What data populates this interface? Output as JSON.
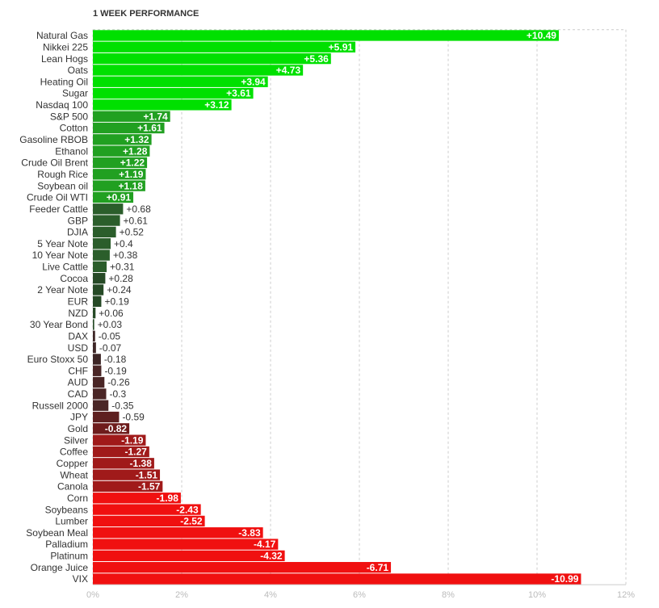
{
  "chart_data": {
    "type": "hbar",
    "title": "1 WEEK PERFORMANCE",
    "categories": [
      "Natural Gas",
      "Nikkei 225",
      "Lean Hogs",
      "Oats",
      "Heating Oil",
      "Sugar",
      "Nasdaq 100",
      "S&P 500",
      "Cotton",
      "Gasoline RBOB",
      "Ethanol",
      "Crude Oil Brent",
      "Rough Rice",
      "Soybean oil",
      "Crude Oil WTI",
      "Feeder Cattle",
      "GBP",
      "DJIA",
      "5 Year Note",
      "10 Year Note",
      "Live Cattle",
      "Cocoa",
      "2 Year Note",
      "EUR",
      "NZD",
      "30 Year Bond",
      "DAX",
      "USD",
      "Euro Stoxx 50",
      "CHF",
      "AUD",
      "CAD",
      "Russell 2000",
      "JPY",
      "Gold",
      "Silver",
      "Coffee",
      "Copper",
      "Wheat",
      "Canola",
      "Corn",
      "Soybeans",
      "Lumber",
      "Soybean Meal",
      "Palladium",
      "Platinum",
      "Orange Juice",
      "VIX"
    ],
    "values": [
      10.49,
      5.91,
      5.36,
      4.73,
      3.94,
      3.61,
      3.12,
      1.74,
      1.61,
      1.32,
      1.28,
      1.22,
      1.19,
      1.18,
      0.91,
      0.68,
      0.61,
      0.52,
      0.4,
      0.38,
      0.31,
      0.28,
      0.24,
      0.19,
      0.06,
      0.03,
      -0.05,
      -0.07,
      -0.18,
      -0.19,
      -0.26,
      -0.3,
      -0.35,
      -0.59,
      -0.82,
      -1.19,
      -1.27,
      -1.38,
      -1.51,
      -1.57,
      -1.98,
      -2.43,
      -2.52,
      -3.83,
      -4.17,
      -4.32,
      -6.71,
      -10.99
    ],
    "value_labels": [
      "+10.49",
      "+5.91",
      "+5.36",
      "+4.73",
      "+3.94",
      "+3.61",
      "+3.12",
      "+1.74",
      "+1.61",
      "+1.32",
      "+1.28",
      "+1.22",
      "+1.19",
      "+1.18",
      "+0.91",
      "+0.68",
      "+0.61",
      "+0.52",
      "+0.4",
      "+0.38",
      "+0.31",
      "+0.28",
      "+0.24",
      "+0.19",
      "+0.06",
      "+0.03",
      "-0.05",
      "-0.07",
      "-0.18",
      "-0.19",
      "-0.26",
      "-0.3",
      "-0.35",
      "-0.59",
      "-0.82",
      "-1.19",
      "-1.27",
      "-1.38",
      "-1.51",
      "-1.57",
      "-1.98",
      "-2.43",
      "-2.52",
      "-3.83",
      "-4.17",
      "-4.32",
      "-6.71",
      "-10.99"
    ],
    "colors": [
      "#00e000",
      "#00e000",
      "#00e000",
      "#00e000",
      "#00e000",
      "#00e000",
      "#00e000",
      "#21a021",
      "#21a021",
      "#21a021",
      "#21a021",
      "#21a021",
      "#21a021",
      "#21a021",
      "#21a021",
      "#2b5e2b",
      "#2b5e2b",
      "#2b5e2b",
      "#2b5e2b",
      "#2b5e2b",
      "#2b5e2b",
      "#264a26",
      "#264a26",
      "#264a26",
      "#264a26",
      "#264a26",
      "#3d2626",
      "#3d2626",
      "#3d2626",
      "#4a2626",
      "#4a2626",
      "#4a2626",
      "#4a2626",
      "#5e2020",
      "#6e1c1c",
      "#a01a1a",
      "#a01a1a",
      "#a01a1a",
      "#a01a1a",
      "#a01a1a",
      "#f01010",
      "#f01010",
      "#f01010",
      "#f01010",
      "#f01010",
      "#f01010",
      "#f01010",
      "#f01010"
    ],
    "xlim": [
      0,
      12
    ],
    "xticks": [
      {
        "value": 0,
        "label": "0%"
      },
      {
        "value": 2,
        "label": "2%"
      },
      {
        "value": 4,
        "label": "4%"
      },
      {
        "value": 6,
        "label": "6%"
      },
      {
        "value": 8,
        "label": "8%"
      },
      {
        "value": 10,
        "label": "10%"
      },
      {
        "value": 12,
        "label": "12%"
      }
    ],
    "grid": true
  }
}
